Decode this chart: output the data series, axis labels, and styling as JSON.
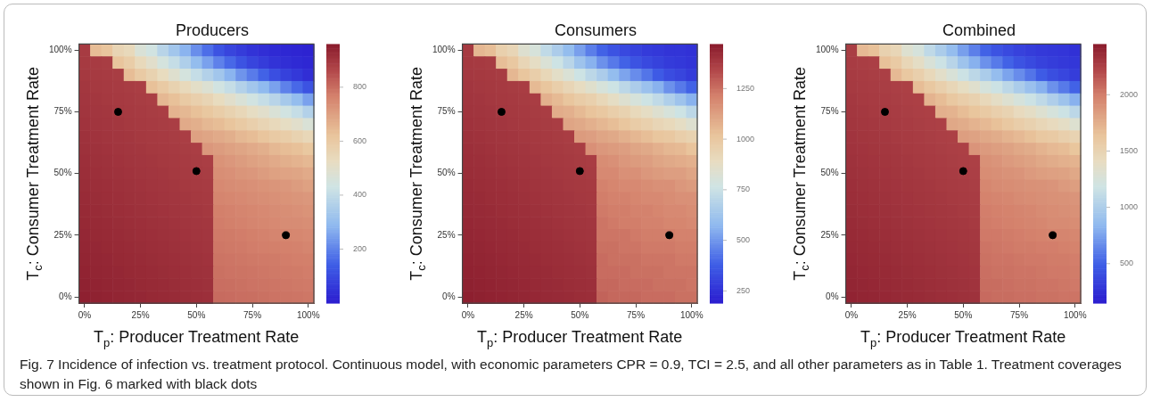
{
  "chart_data": [
    {
      "type": "heatmap",
      "title": "Producers",
      "xlabel": "T$_{p}$: Producer Treatment Rate",
      "ylabel": "T$_{c}$: Consumer Treatment Rate",
      "categories": [
        "0%",
        null,
        null,
        null,
        null,
        "25%",
        null,
        null,
        null,
        null,
        "50%",
        null,
        null,
        null,
        null,
        "75%",
        null,
        null,
        null,
        null,
        "100%"
      ],
      "ylim": [
        -2.5,
        102.5
      ],
      "yticks": [
        {
          "value": 0,
          "label": "0%"
        },
        {
          "value": 25,
          "label": "25%"
        },
        {
          "value": 50,
          "label": "50%"
        },
        {
          "value": 75,
          "label": "75%"
        },
        {
          "value": 100,
          "label": "100%"
        }
      ],
      "clim": [
        0,
        960
      ],
      "cticks": [
        200,
        400,
        600,
        800
      ],
      "marker": "circle",
      "series": [
        {
          "type": "scatter",
          "values": [
            null,
            null,
            null,
            75,
            null,
            null,
            null,
            null,
            null,
            null,
            51,
            null,
            null,
            null,
            null,
            null,
            null,
            null,
            25,
            null,
            null
          ],
          "color": "#000000"
        }
      ],
      "annotations": [
        "Fig. 7 Incidence of infection vs. treatment protocol. Continuous model, with economic parameters CPR = 0.9, TCI = 2.5, and all other parameters as in Table 1. Treatment coverages shown in Fig. 6 marked with black dots"
      ],
      "cells": [
        [
          890,
          640,
          620,
          560,
          540,
          470,
          440,
          380,
          330,
          280,
          220,
          170,
          120,
          90,
          70,
          50,
          40,
          30,
          25,
          20,
          15
        ],
        [
          893,
          890,
          887,
          620,
          590,
          540,
          500,
          450,
          410,
          360,
          300,
          250,
          200,
          160,
          120,
          90,
          70,
          50,
          40,
          30,
          25
        ],
        [
          896,
          893,
          890,
          887,
          640,
          600,
          570,
          530,
          490,
          450,
          410,
          370,
          330,
          280,
          230,
          190,
          150,
          110,
          80,
          60,
          40
        ],
        [
          899,
          896,
          893,
          890,
          887,
          884,
          630,
          600,
          570,
          540,
          510,
          480,
          440,
          410,
          370,
          330,
          290,
          250,
          200,
          160,
          120
        ],
        [
          902,
          899,
          896,
          893,
          890,
          887,
          884,
          650,
          630,
          600,
          580,
          560,
          530,
          500,
          470,
          440,
          410,
          380,
          340,
          300,
          250
        ],
        [
          905,
          902,
          899,
          896,
          893,
          890,
          887,
          884,
          660,
          650,
          630,
          610,
          590,
          570,
          550,
          520,
          500,
          470,
          440,
          410,
          370
        ],
        [
          908,
          905,
          902,
          899,
          896,
          893,
          890,
          887,
          884,
          680,
          670,
          650,
          640,
          620,
          600,
          580,
          560,
          540,
          520,
          500,
          470
        ],
        [
          911,
          908,
          905,
          902,
          899,
          896,
          893,
          890,
          887,
          884,
          700,
          690,
          680,
          670,
          650,
          640,
          620,
          600,
          590,
          570,
          550
        ],
        [
          914,
          911,
          908,
          905,
          902,
          899,
          896,
          893,
          890,
          887,
          884,
          720,
          710,
          700,
          690,
          680,
          670,
          650,
          640,
          630,
          610
        ],
        [
          917,
          914,
          911,
          908,
          905,
          902,
          899,
          896,
          893,
          890,
          887,
          884,
          730,
          720,
          710,
          700,
          690,
          680,
          670,
          660,
          650
        ],
        [
          920,
          917,
          914,
          911,
          908,
          905,
          902,
          899,
          896,
          893,
          890,
          887,
          740,
          735,
          725,
          720,
          710,
          700,
          695,
          690,
          680
        ],
        [
          923,
          920,
          917,
          914,
          911,
          908,
          905,
          902,
          899,
          896,
          893,
          890,
          750,
          745,
          740,
          735,
          730,
          725,
          720,
          710,
          700
        ],
        [
          926,
          923,
          920,
          917,
          914,
          911,
          908,
          905,
          902,
          899,
          896,
          893,
          760,
          755,
          750,
          745,
          740,
          735,
          730,
          725,
          720
        ],
        [
          929,
          926,
          923,
          920,
          917,
          914,
          911,
          908,
          905,
          902,
          899,
          896,
          770,
          765,
          760,
          755,
          750,
          745,
          740,
          735,
          730
        ],
        [
          932,
          929,
          926,
          923,
          920,
          917,
          914,
          911,
          908,
          905,
          902,
          899,
          775,
          770,
          765,
          760,
          755,
          750,
          745,
          745,
          740
        ],
        [
          935,
          932,
          929,
          926,
          923,
          920,
          917,
          914,
          911,
          908,
          905,
          902,
          780,
          778,
          775,
          770,
          765,
          760,
          758,
          755,
          750
        ],
        [
          938,
          935,
          932,
          929,
          926,
          923,
          920,
          917,
          914,
          911,
          908,
          905,
          785,
          782,
          780,
          775,
          772,
          770,
          768,
          765,
          760
        ],
        [
          941,
          938,
          935,
          932,
          929,
          926,
          923,
          920,
          917,
          914,
          911,
          908,
          790,
          788,
          785,
          782,
          780,
          778,
          775,
          772,
          770
        ],
        [
          944,
          941,
          938,
          935,
          932,
          929,
          926,
          923,
          920,
          917,
          914,
          911,
          795,
          792,
          790,
          788,
          785,
          782,
          780,
          778,
          775
        ],
        [
          947,
          944,
          941,
          938,
          935,
          932,
          929,
          926,
          923,
          920,
          917,
          914,
          800,
          798,
          795,
          792,
          790,
          788,
          785,
          782,
          780
        ],
        [
          950,
          947,
          944,
          941,
          938,
          935,
          932,
          929,
          926,
          923,
          920,
          917,
          805,
          802,
          800,
          798,
          795,
          792,
          790,
          788,
          785
        ]
      ]
    },
    {
      "type": "heatmap",
      "title": "Consumers",
      "xlabel": "T$_{p}$: Producer Treatment Rate",
      "ylabel": "T$_{c}$: Consumer Treatment Rate",
      "categories": [
        "0%",
        null,
        null,
        null,
        null,
        "25%",
        null,
        null,
        null,
        null,
        "50%",
        null,
        null,
        null,
        null,
        "75%",
        null,
        null,
        null,
        null,
        "100%"
      ],
      "ylim": [
        -2.5,
        102.5
      ],
      "yticks": [
        {
          "value": 0,
          "label": "0%"
        },
        {
          "value": 25,
          "label": "25%"
        },
        {
          "value": 50,
          "label": "50%"
        },
        {
          "value": 75,
          "label": "75%"
        },
        {
          "value": 100,
          "label": "100%"
        }
      ],
      "clim": [
        190,
        1470
      ],
      "cticks": [
        250,
        500,
        750,
        1000,
        1250
      ],
      "marker": "circle",
      "series": [
        {
          "type": "scatter",
          "values": [
            null,
            null,
            null,
            75,
            null,
            null,
            null,
            null,
            null,
            null,
            51,
            null,
            null,
            null,
            null,
            null,
            null,
            null,
            25,
            null,
            null
          ],
          "color": "#000000"
        }
      ],
      "cells": [
        [
          1380,
          1060,
          1040,
          960,
          930,
          840,
          800,
          720,
          660,
          590,
          520,
          450,
          390,
          350,
          320,
          300,
          280,
          270,
          260,
          260,
          250
        ],
        [
          1384,
          1380,
          1376,
          1040,
          1000,
          930,
          880,
          820,
          760,
          700,
          620,
          560,
          490,
          440,
          390,
          350,
          320,
          300,
          280,
          270,
          260
        ],
        [
          1388,
          1384,
          1380,
          1376,
          1060,
          1010,
          970,
          920,
          870,
          820,
          760,
          710,
          660,
          590,
          530,
          480,
          430,
          370,
          330,
          310,
          280
        ],
        [
          1392,
          1388,
          1384,
          1380,
          1376,
          1372,
          1050,
          1010,
          970,
          930,
          890,
          850,
          800,
          760,
          710,
          660,
          610,
          560,
          490,
          440,
          390
        ],
        [
          1396,
          1392,
          1388,
          1384,
          1380,
          1376,
          1372,
          1080,
          1050,
          1010,
          980,
          960,
          920,
          880,
          840,
          800,
          760,
          720,
          670,
          620,
          560
        ],
        [
          1400,
          1396,
          1392,
          1388,
          1384,
          1380,
          1376,
          1372,
          1090,
          1080,
          1050,
          1020,
          1000,
          970,
          950,
          910,
          880,
          840,
          800,
          760,
          710
        ],
        [
          1404,
          1400,
          1396,
          1392,
          1388,
          1384,
          1380,
          1376,
          1372,
          1110,
          1100,
          1080,
          1060,
          1040,
          1010,
          980,
          960,
          930,
          910,
          880,
          840
        ],
        [
          1408,
          1404,
          1400,
          1396,
          1392,
          1388,
          1384,
          1380,
          1376,
          1372,
          1140,
          1130,
          1110,
          1100,
          1080,
          1060,
          1040,
          1010,
          1000,
          970,
          950
        ],
        [
          1412,
          1408,
          1404,
          1400,
          1396,
          1392,
          1388,
          1384,
          1380,
          1376,
          1372,
          1170,
          1150,
          1140,
          1130,
          1110,
          1100,
          1080,
          1060,
          1050,
          1020
        ],
        [
          1416,
          1412,
          1408,
          1404,
          1400,
          1396,
          1392,
          1388,
          1384,
          1380,
          1376,
          1372,
          1180,
          1170,
          1150,
          1140,
          1130,
          1110,
          1100,
          1090,
          1080
        ],
        [
          1420,
          1416,
          1412,
          1408,
          1404,
          1400,
          1396,
          1392,
          1388,
          1384,
          1380,
          1376,
          1190,
          1190,
          1170,
          1170,
          1150,
          1140,
          1130,
          1130,
          1110
        ],
        [
          1424,
          1420,
          1416,
          1412,
          1408,
          1404,
          1400,
          1396,
          1392,
          1388,
          1384,
          1380,
          1210,
          1200,
          1190,
          1190,
          1180,
          1170,
          1170,
          1150,
          1140
        ],
        [
          1428,
          1424,
          1420,
          1416,
          1412,
          1408,
          1404,
          1400,
          1396,
          1392,
          1388,
          1384,
          1220,
          1210,
          1210,
          1200,
          1190,
          1190,
          1180,
          1170,
          1170
        ],
        [
          1432,
          1428,
          1424,
          1420,
          1416,
          1412,
          1408,
          1404,
          1400,
          1396,
          1392,
          1388,
          1230,
          1220,
          1220,
          1210,
          1210,
          1200,
          1190,
          1190,
          1180
        ],
        [
          1436,
          1432,
          1428,
          1424,
          1420,
          1416,
          1412,
          1408,
          1404,
          1400,
          1396,
          1392,
          1240,
          1230,
          1220,
          1220,
          1210,
          1210,
          1200,
          1200,
          1190
        ],
        [
          1440,
          1436,
          1432,
          1428,
          1424,
          1420,
          1416,
          1412,
          1408,
          1404,
          1400,
          1396,
          1240,
          1240,
          1240,
          1230,
          1220,
          1220,
          1220,
          1210,
          1210
        ],
        [
          1444,
          1440,
          1436,
          1432,
          1428,
          1424,
          1420,
          1416,
          1412,
          1408,
          1404,
          1400,
          1250,
          1250,
          1240,
          1240,
          1230,
          1230,
          1230,
          1220,
          1220
        ],
        [
          1448,
          1444,
          1440,
          1436,
          1432,
          1428,
          1424,
          1420,
          1416,
          1412,
          1408,
          1404,
          1260,
          1250,
          1250,
          1250,
          1240,
          1240,
          1240,
          1230,
          1230
        ],
        [
          1452,
          1448,
          1444,
          1440,
          1436,
          1432,
          1428,
          1424,
          1420,
          1416,
          1412,
          1408,
          1260,
          1260,
          1260,
          1250,
          1250,
          1250,
          1240,
          1240,
          1240
        ],
        [
          1456,
          1452,
          1448,
          1444,
          1440,
          1436,
          1432,
          1428,
          1424,
          1420,
          1416,
          1412,
          1270,
          1270,
          1260,
          1260,
          1260,
          1250,
          1250,
          1250,
          1240
        ],
        [
          1460,
          1456,
          1452,
          1448,
          1444,
          1440,
          1436,
          1432,
          1428,
          1424,
          1420,
          1416,
          1280,
          1270,
          1270,
          1270,
          1260,
          1260,
          1260,
          1250,
          1250
        ]
      ]
    },
    {
      "type": "heatmap",
      "title": "Combined",
      "xlabel": "T$_{p}$: Producer Treatment Rate",
      "ylabel": "T$_{c}$: Consumer Treatment Rate",
      "categories": [
        "0%",
        null,
        null,
        null,
        null,
        "25%",
        null,
        null,
        null,
        null,
        "50%",
        null,
        null,
        null,
        null,
        "75%",
        null,
        null,
        null,
        null,
        "100%"
      ],
      "ylim": [
        -2.5,
        102.5
      ],
      "yticks": [
        {
          "value": 0,
          "label": "0%"
        },
        {
          "value": 25,
          "label": "25%"
        },
        {
          "value": 50,
          "label": "50%"
        },
        {
          "value": 75,
          "label": "75%"
        },
        {
          "value": 100,
          "label": "100%"
        }
      ],
      "clim": [
        150,
        2450
      ],
      "cticks": [
        500,
        1000,
        1500,
        2000
      ],
      "marker": "circle",
      "series": [
        {
          "type": "scatter",
          "values": [
            null,
            null,
            null,
            75,
            null,
            null,
            null,
            null,
            null,
            null,
            51,
            null,
            null,
            null,
            null,
            null,
            null,
            null,
            25,
            null,
            null
          ],
          "color": "#000000"
        }
      ],
      "cells": [
        [
          2270,
          1700,
          1660,
          1520,
          1470,
          1310,
          1240,
          1100,
          990,
          870,
          740,
          620,
          510,
          440,
          390,
          350,
          320,
          300,
          290,
          280,
          260
        ],
        [
          2277,
          2270,
          2263,
          1660,
          1590,
          1470,
          1380,
          1270,
          1170,
          1060,
          920,
          810,
          690,
          600,
          510,
          440,
          390,
          350,
          320,
          300,
          290
        ],
        [
          2284,
          2277,
          2270,
          2263,
          1700,
          1610,
          1540,
          1450,
          1360,
          1270,
          1170,
          1080,
          990,
          870,
          760,
          670,
          580,
          480,
          410,
          370,
          320
        ],
        [
          2291,
          2284,
          2277,
          2270,
          2263,
          2256,
          1680,
          1610,
          1540,
          1470,
          1400,
          1330,
          1240,
          1170,
          1080,
          990,
          900,
          810,
          690,
          600,
          510
        ],
        [
          2298,
          2291,
          2284,
          2277,
          2270,
          2263,
          2256,
          1730,
          1680,
          1610,
          1560,
          1520,
          1450,
          1380,
          1310,
          1240,
          1170,
          1100,
          1010,
          920,
          810
        ],
        [
          2305,
          2298,
          2291,
          2284,
          2277,
          2270,
          2263,
          2256,
          1750,
          1730,
          1680,
          1630,
          1590,
          1540,
          1500,
          1430,
          1380,
          1310,
          1240,
          1170,
          1080
        ],
        [
          2312,
          2305,
          2298,
          2291,
          2284,
          2277,
          2270,
          2263,
          2256,
          1790,
          1770,
          1730,
          1700,
          1660,
          1610,
          1560,
          1520,
          1470,
          1430,
          1380,
          1310
        ],
        [
          2319,
          2312,
          2305,
          2298,
          2291,
          2284,
          2277,
          2270,
          2263,
          2256,
          1840,
          1820,
          1790,
          1770,
          1730,
          1700,
          1660,
          1610,
          1590,
          1540,
          1500
        ],
        [
          2326,
          2319,
          2312,
          2305,
          2298,
          2291,
          2284,
          2277,
          2270,
          2263,
          2256,
          1890,
          1860,
          1840,
          1820,
          1790,
          1770,
          1730,
          1700,
          1680,
          1630
        ],
        [
          2333,
          2326,
          2319,
          2312,
          2305,
          2298,
          2291,
          2284,
          2277,
          2270,
          2263,
          2256,
          1910,
          1890,
          1860,
          1840,
          1820,
          1790,
          1770,
          1750,
          1730
        ],
        [
          2340,
          2333,
          2326,
          2319,
          2312,
          2305,
          2298,
          2291,
          2284,
          2277,
          2270,
          2263,
          1930,
          1920,
          1900,
          1890,
          1860,
          1840,
          1830,
          1820,
          1790
        ],
        [
          2347,
          2340,
          2333,
          2326,
          2319,
          2312,
          2305,
          2298,
          2291,
          2284,
          2277,
          2270,
          1960,
          1940,
          1930,
          1920,
          1910,
          1900,
          1890,
          1860,
          1840
        ],
        [
          2354,
          2347,
          2340,
          2333,
          2326,
          2319,
          2312,
          2305,
          2298,
          2291,
          2284,
          2277,
          1980,
          1970,
          1960,
          1940,
          1930,
          1920,
          1910,
          1900,
          1890
        ],
        [
          2361,
          2354,
          2347,
          2340,
          2333,
          2326,
          2319,
          2312,
          2305,
          2298,
          2291,
          2284,
          2000,
          1990,
          1980,
          1970,
          1960,
          1940,
          1930,
          1920,
          1910
        ],
        [
          2368,
          2361,
          2354,
          2347,
          2340,
          2333,
          2326,
          2319,
          2312,
          2305,
          2298,
          2291,
          2010,
          2000,
          1990,
          1980,
          1970,
          1960,
          1940,
          1940,
          1930
        ],
        [
          2375,
          2368,
          2361,
          2354,
          2347,
          2340,
          2333,
          2326,
          2319,
          2312,
          2305,
          2298,
          2020,
          2020,
          2010,
          2000,
          1990,
          1980,
          1970,
          1970,
          1960
        ],
        [
          2382,
          2375,
          2368,
          2361,
          2354,
          2347,
          2340,
          2333,
          2326,
          2319,
          2312,
          2305,
          2040,
          2030,
          2020,
          2010,
          2010,
          2000,
          2000,
          1990,
          1980
        ],
        [
          2389,
          2382,
          2375,
          2368,
          2361,
          2354,
          2347,
          2340,
          2333,
          2326,
          2319,
          2312,
          2050,
          2040,
          2040,
          2030,
          2020,
          2020,
          2010,
          2010,
          2000
        ],
        [
          2396,
          2389,
          2382,
          2375,
          2368,
          2361,
          2354,
          2347,
          2340,
          2333,
          2326,
          2319,
          2060,
          2050,
          2050,
          2040,
          2040,
          2030,
          2020,
          2020,
          2010
        ],
        [
          2403,
          2396,
          2389,
          2382,
          2375,
          2368,
          2361,
          2354,
          2347,
          2340,
          2333,
          2326,
          2070,
          2070,
          2060,
          2050,
          2050,
          2040,
          2040,
          2030,
          2020
        ],
        [
          2410,
          2403,
          2396,
          2389,
          2382,
          2375,
          2368,
          2361,
          2354,
          2347,
          2340,
          2333,
          2080,
          2070,
          2070,
          2060,
          2060,
          2050,
          2050,
          2040,
          2040
        ]
      ]
    }
  ]
}
